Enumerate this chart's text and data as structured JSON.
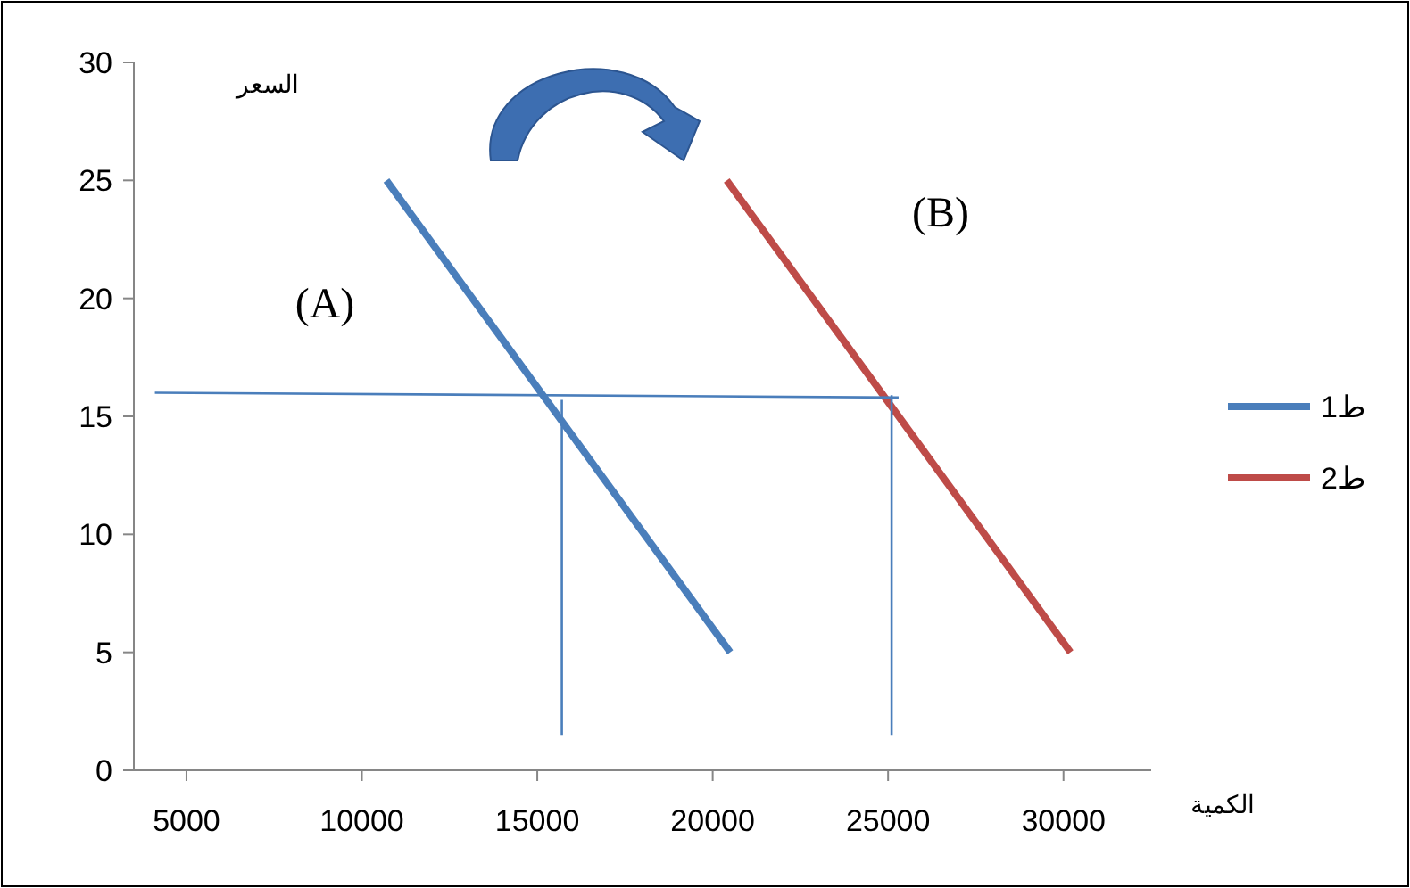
{
  "chart_data": {
    "type": "line",
    "xlabel": "الكمية",
    "ylabel": "السعر",
    "xlim": [
      3500,
      32500
    ],
    "xticks": [
      5000,
      10000,
      15000,
      20000,
      25000,
      30000
    ],
    "ylim": [
      0,
      30
    ],
    "yticks": [
      0,
      5,
      10,
      15,
      20,
      25,
      30
    ],
    "legend": "right",
    "series": [
      {
        "name": "ط1",
        "color": "#4a7ebb",
        "x": [
          10700,
          20500
        ],
        "values": [
          25,
          5
        ]
      },
      {
        "name": "ط2",
        "color": "#be4b48",
        "x": [
          20400,
          30200
        ],
        "values": [
          25,
          5
        ]
      },
      {
        "color": "#4a7ebb",
        "x": [
          4100,
          25300
        ],
        "values": [
          16,
          15.8
        ]
      },
      {
        "color": "#4a7ebb",
        "x": [
          15700,
          15700
        ],
        "values": [
          1.5,
          15.7
        ]
      },
      {
        "color": "#4a7ebb",
        "x": [
          25100,
          25100
        ],
        "values": [
          1.5,
          15.9
        ]
      }
    ],
    "annotations": [
      "(A)",
      "(B)"
    ]
  }
}
